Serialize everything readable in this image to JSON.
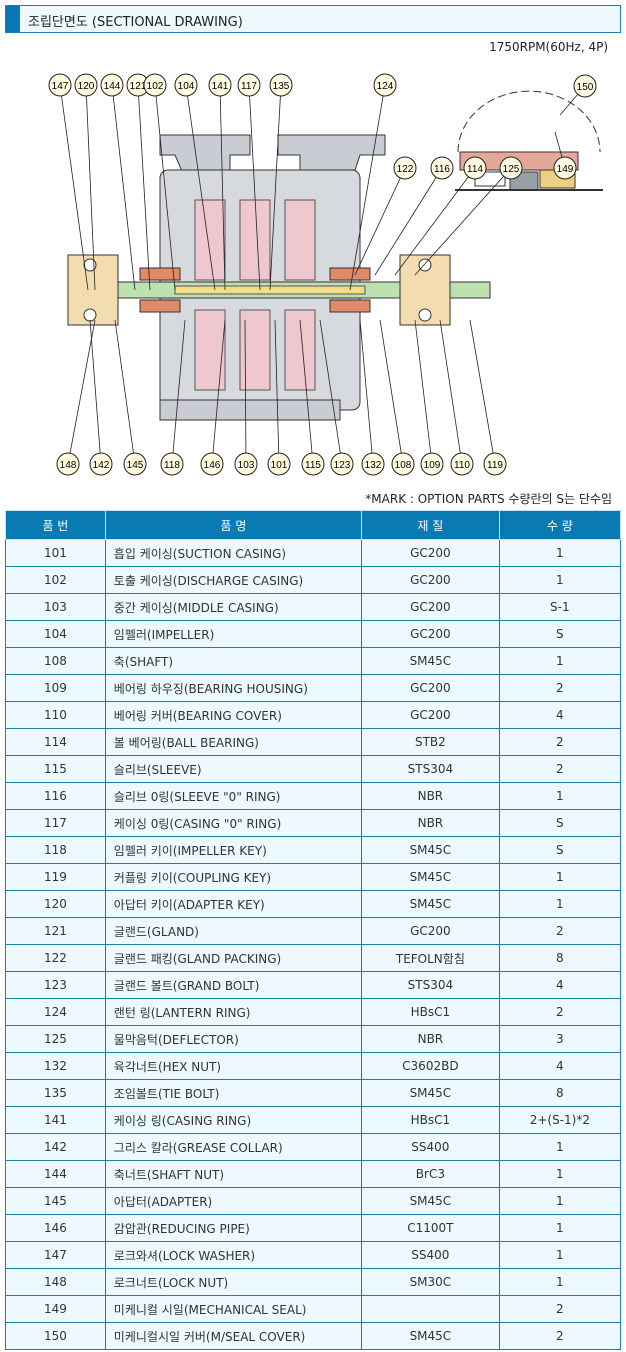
{
  "header": {
    "title": "조립단면도 (SECTIONAL DRAWING)",
    "accent_color": "#0a78b6"
  },
  "drawing": {
    "spec": "1750RPM(60Hz, 4P)",
    "callouts_top": [
      "147",
      "120",
      "144",
      "121",
      "102",
      "104",
      "141",
      "117",
      "135",
      "124"
    ],
    "callouts_right": [
      "122",
      "116",
      "114",
      "125"
    ],
    "callouts_detail": [
      "150",
      "149"
    ],
    "callouts_bottom": [
      "148",
      "142",
      "145",
      "118",
      "146",
      "103",
      "101",
      "115",
      "123",
      "132",
      "108",
      "109",
      "110",
      "119"
    ]
  },
  "note": "*MARK : OPTION PARTS 수량란의 S는 단수임",
  "table": {
    "header_color": "#0a7ab5",
    "columns": [
      "품 번",
      "품 명",
      "재 질",
      "수 량"
    ],
    "rows": [
      [
        "101",
        "흡입 케이싱(SUCTION CASING)",
        "GC200",
        "1"
      ],
      [
        "102",
        "토출 케이싱(DISCHARGE CASING)",
        "GC200",
        "1"
      ],
      [
        "103",
        "중간 케이싱(MIDDLE CASING)",
        "GC200",
        "S-1"
      ],
      [
        "104",
        "임펠러(IMPELLER)",
        "GC200",
        "S"
      ],
      [
        "108",
        "축(SHAFT)",
        "SM45C",
        "1"
      ],
      [
        "109",
        "베어링 하우징(BEARING HOUSING)",
        "GC200",
        "2"
      ],
      [
        "110",
        "베어링 커버(BEARING COVER)",
        "GC200",
        "4"
      ],
      [
        "114",
        "볼 베어링(BALL BEARING)",
        "STB2",
        "2"
      ],
      [
        "115",
        "슬리브(SLEEVE)",
        "STS304",
        "2"
      ],
      [
        "116",
        "슬리브 0링(SLEEVE \"0\" RING)",
        "NBR",
        "1"
      ],
      [
        "117",
        "케이싱 0링(CASING \"0\" RING)",
        "NBR",
        "S"
      ],
      [
        "118",
        "임펠러 키이(IMPELLER KEY)",
        "SM45C",
        "S"
      ],
      [
        "119",
        "커플링 키이(COUPLING KEY)",
        "SM45C",
        "1"
      ],
      [
        "120",
        "아답터 키이(ADAPTER KEY)",
        "SM45C",
        "1"
      ],
      [
        "121",
        "글랜드(GLAND)",
        "GC200",
        "2"
      ],
      [
        "122",
        "글랜드 패킹(GLAND PACKING)",
        "TEFOLN함침",
        "8"
      ],
      [
        "123",
        "글랜드 볼트(GRAND BOLT)",
        "STS304",
        "4"
      ],
      [
        "124",
        "랜턴 링(LANTERN RING)",
        "HBsC1",
        "2"
      ],
      [
        "125",
        "물막음턱(DEFLECTOR)",
        "NBR",
        "3"
      ],
      [
        "132",
        "육각너트(HEX NUT)",
        "C3602BD",
        "4"
      ],
      [
        "135",
        "조임볼트(TIE BOLT)",
        "SM45C",
        "8"
      ],
      [
        "141",
        "케이싱 링(CASING RING)",
        "HBsC1",
        "2+(S-1)*2"
      ],
      [
        "142",
        "그리스 칼라(GREASE COLLAR)",
        "SS400",
        "1"
      ],
      [
        "144",
        "축너트(SHAFT NUT)",
        "BrC3",
        "1"
      ],
      [
        "145",
        "아답터(ADAPTER)",
        "SM45C",
        "1"
      ],
      [
        "146",
        "감압관(REDUCING PIPE)",
        "C1100T",
        "1"
      ],
      [
        "147",
        "로크와셔(LOCK WASHER)",
        "SS400",
        "1"
      ],
      [
        "148",
        "로크너트(LOCK NUT)",
        "SM30C",
        "1"
      ],
      [
        "149",
        "미케니컬 시일(MECHANICAL SEAL)",
        "",
        "2"
      ],
      [
        "150",
        "미케니컬시일 커버(M/SEAL COVER)",
        "SM45C",
        "2"
      ]
    ]
  }
}
